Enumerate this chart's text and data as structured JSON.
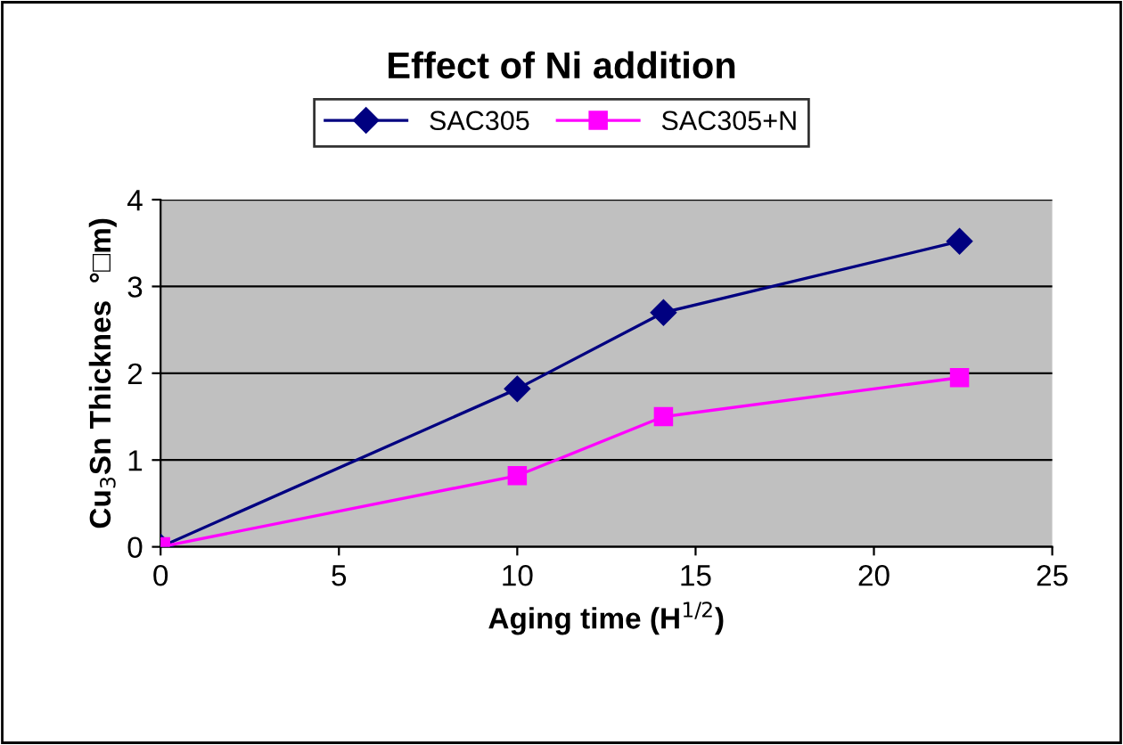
{
  "chart_data": {
    "type": "line",
    "title": "Effect of Ni addition",
    "xlabel": "Aging time (H$^{1/2}$)",
    "ylabel": "Cu$_{3}$Sn Thicknes  °□m)",
    "x": [
      0,
      10,
      14.1,
      22.4
    ],
    "series": [
      {
        "name": "SAC305",
        "color": "#000080",
        "marker": "diamond",
        "values": [
          0,
          1.82,
          2.7,
          3.52
        ]
      },
      {
        "name": "SAC305+N",
        "color": "#ff00ff",
        "marker": "square",
        "values": [
          0,
          0.82,
          1.5,
          1.95
        ]
      }
    ],
    "xlim": [
      0,
      25
    ],
    "xticks": [
      0,
      5,
      10,
      15,
      20,
      25
    ],
    "ylim": [
      0,
      4
    ],
    "yticks": [
      0,
      1,
      2,
      3,
      4
    ],
    "grid": "y",
    "legend": "top",
    "line_style": "solid"
  }
}
